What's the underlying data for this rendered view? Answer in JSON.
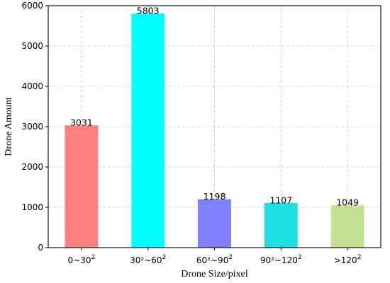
{
  "chart_data": {
    "type": "bar",
    "categories": [
      {
        "base": "0~30",
        "sup": "2"
      },
      {
        "base": "30²~60",
        "sup": "2"
      },
      {
        "base": "60²~90",
        "sup": "2"
      },
      {
        "base": "90²~120",
        "sup": "2"
      },
      {
        "base": ">120",
        "sup": "2"
      }
    ],
    "values": [
      3031,
      5803,
      1198,
      1107,
      1049
    ],
    "value_labels": [
      "3031",
      "5803",
      "1198",
      "1107",
      "1049"
    ],
    "colors": [
      "#ff8080",
      "#00ffff",
      "#8080ff",
      "#1ee0e0",
      "#c2e291"
    ],
    "xlabel": "Drone Size/pixel",
    "ylabel": "Drone Amount",
    "ylim": [
      0,
      6000
    ],
    "yticks": [
      0,
      1000,
      2000,
      3000,
      4000,
      5000,
      6000
    ],
    "grid": true
  }
}
